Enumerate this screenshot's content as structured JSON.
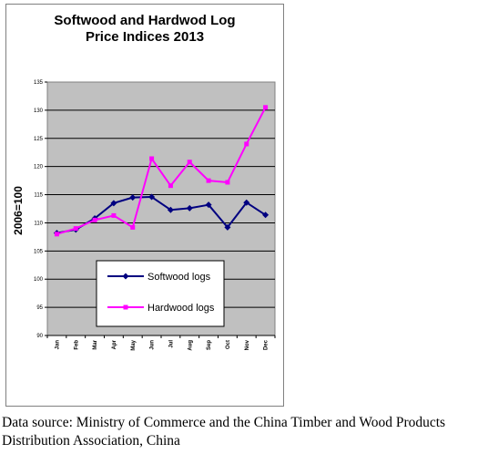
{
  "chart_data": {
    "type": "line",
    "title_lines": [
      "Softwood and Hardwod Log",
      "Price Indices 2013"
    ],
    "ylabel": "2006=100",
    "xlabel": "",
    "ylim": [
      90,
      135
    ],
    "yticks": [
      90,
      95,
      100,
      105,
      110,
      115,
      120,
      125,
      130,
      135
    ],
    "categories": [
      "Jan",
      "Feb",
      "Mar",
      "Apr",
      "May",
      "Jun",
      "Jul",
      "Aug",
      "Sep",
      "Oct",
      "Nov",
      "Dec"
    ],
    "grid": true,
    "legend_position": "lower-center",
    "series": [
      {
        "name": "Softwood logs",
        "color": "#000080",
        "marker": "diamond",
        "values": [
          108.2,
          108.8,
          110.8,
          113.5,
          114.5,
          114.6,
          112.3,
          112.6,
          113.2,
          109.2,
          113.6,
          111.4
        ]
      },
      {
        "name": "Hardwood logs",
        "color": "#ff00ff",
        "marker": "square",
        "values": [
          108.0,
          109.0,
          110.5,
          111.3,
          109.2,
          121.4,
          116.6,
          120.8,
          117.5,
          117.2,
          124.0,
          130.5
        ]
      }
    ],
    "plot_background": "#c0c0c0"
  },
  "caption": "Data source: Ministry of Commerce and the China Timber and Wood Products Distribution Association, China"
}
